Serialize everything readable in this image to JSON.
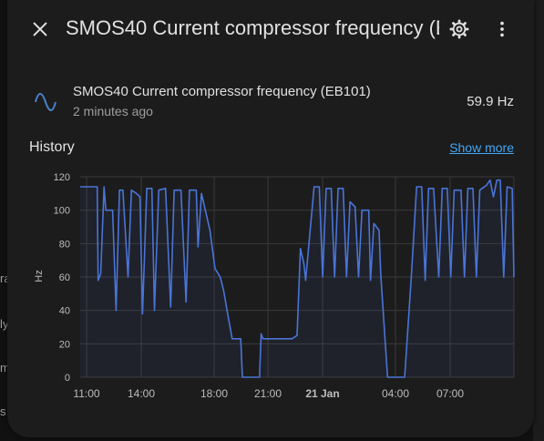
{
  "background": {
    "fragments": [
      "ra",
      "ly",
      "m",
      "s"
    ]
  },
  "dialog": {
    "title": "SMOS40 Current compressor frequency (EB101)",
    "close_icon": "close-icon",
    "settings_icon": "gear-icon",
    "more_icon": "more-vert-icon"
  },
  "entity": {
    "icon": "sine-wave-icon",
    "name": "SMOS40 Current compressor frequency (EB101)",
    "last_changed": "2 minutes ago",
    "state": "59.9 Hz"
  },
  "history": {
    "title": "History",
    "show_more": "Show more"
  },
  "colors": {
    "accent": "#41a6f5",
    "series": "#4a74d8",
    "dialog_bg": "#1c1c1c",
    "grid": "#3a3a3a"
  },
  "chart_data": {
    "type": "line",
    "ylabel": "Hz",
    "ylim": [
      0,
      120
    ],
    "y_ticks": [
      "0",
      "20",
      "40",
      "60",
      "80",
      "100",
      "120"
    ],
    "x_ticks": [
      "11:00",
      "14:00",
      "18:00",
      "21:00",
      "21 Jan",
      "04:00",
      "07:00"
    ],
    "grid": true,
    "series": [
      {
        "points": [
          [
            0.0,
            114
          ],
          [
            1.0,
            114
          ],
          [
            1.05,
            58
          ],
          [
            1.2,
            62
          ],
          [
            1.4,
            114
          ],
          [
            1.5,
            100
          ],
          [
            1.9,
            100
          ],
          [
            2.1,
            40
          ],
          [
            2.3,
            112
          ],
          [
            2.5,
            112
          ],
          [
            2.8,
            60
          ],
          [
            3.0,
            112
          ],
          [
            3.3,
            110
          ],
          [
            3.5,
            108
          ],
          [
            3.65,
            38
          ],
          [
            3.9,
            113
          ],
          [
            4.2,
            113
          ],
          [
            4.35,
            40
          ],
          [
            4.6,
            112
          ],
          [
            5.0,
            113
          ],
          [
            5.3,
            42
          ],
          [
            5.5,
            112
          ],
          [
            5.9,
            112
          ],
          [
            6.2,
            45
          ],
          [
            6.4,
            112
          ],
          [
            6.8,
            112
          ],
          [
            6.9,
            78
          ],
          [
            7.1,
            110
          ],
          [
            7.6,
            88
          ],
          [
            7.9,
            65
          ],
          [
            8.2,
            60
          ],
          [
            8.4,
            52
          ],
          [
            8.6,
            40
          ],
          [
            8.9,
            23
          ],
          [
            9.4,
            23
          ],
          [
            9.5,
            0
          ],
          [
            10.5,
            0
          ],
          [
            10.6,
            26
          ],
          [
            10.7,
            23
          ],
          [
            12.4,
            23
          ],
          [
            12.7,
            25
          ],
          [
            12.9,
            77
          ],
          [
            13.1,
            68
          ],
          [
            13.2,
            58
          ],
          [
            13.7,
            114
          ],
          [
            14.0,
            114
          ],
          [
            14.2,
            60
          ],
          [
            14.4,
            113
          ],
          [
            14.7,
            113
          ],
          [
            14.9,
            60
          ],
          [
            15.1,
            113
          ],
          [
            15.4,
            113
          ],
          [
            15.6,
            60
          ],
          [
            15.8,
            105
          ],
          [
            16.1,
            102
          ],
          [
            16.3,
            60
          ],
          [
            16.5,
            100
          ],
          [
            16.9,
            100
          ],
          [
            17.0,
            58
          ],
          [
            17.2,
            92
          ],
          [
            17.5,
            88
          ],
          [
            17.6,
            62
          ],
          [
            18.0,
            0
          ],
          [
            19.0,
            0
          ],
          [
            19.4,
            62
          ],
          [
            19.7,
            114
          ],
          [
            20.0,
            114
          ],
          [
            20.2,
            58
          ],
          [
            20.4,
            113
          ],
          [
            20.7,
            113
          ],
          [
            21.0,
            60
          ],
          [
            21.2,
            113
          ],
          [
            21.5,
            113
          ],
          [
            21.7,
            60
          ],
          [
            21.9,
            112
          ],
          [
            22.3,
            112
          ],
          [
            22.5,
            60
          ],
          [
            22.7,
            113
          ],
          [
            23.0,
            113
          ],
          [
            23.2,
            60
          ],
          [
            23.4,
            112
          ],
          [
            23.8,
            115
          ],
          [
            24.0,
            118
          ],
          [
            24.2,
            108
          ],
          [
            24.4,
            118
          ],
          [
            24.6,
            118
          ],
          [
            24.8,
            60
          ],
          [
            25.0,
            114
          ],
          [
            25.3,
            113
          ],
          [
            25.4,
            59.9
          ]
        ]
      }
    ]
  }
}
